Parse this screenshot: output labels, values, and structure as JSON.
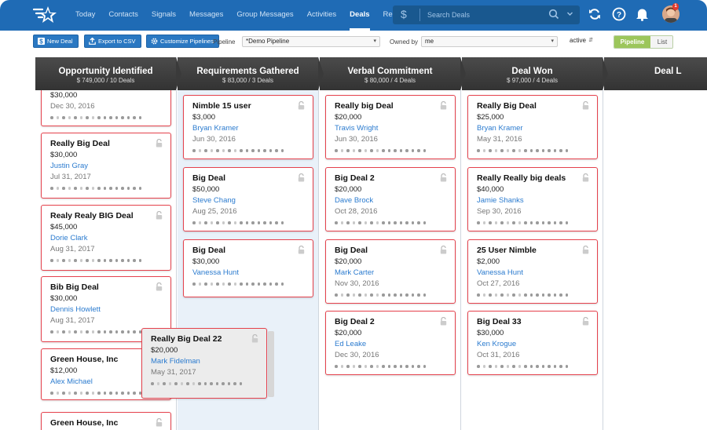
{
  "nav": {
    "items": [
      "Today",
      "Contacts",
      "Signals",
      "Messages",
      "Group Messages",
      "Activities",
      "Deals",
      "Reports"
    ],
    "active": "Deals",
    "search_placeholder": "Search Deals",
    "notification_count": "1"
  },
  "toolbar": {
    "new_deal": "New Deal",
    "export_csv": "Export to CSV",
    "customize": "Customize Pipelines",
    "pipeline_label": "Pipeline",
    "pipeline_value": "*Demo Pipeline",
    "owned_label": "Owned by",
    "owned_value": "me",
    "status_value": "active",
    "view_pipeline": "Pipeline",
    "view_list": "List"
  },
  "columns": [
    {
      "title": "Opportunity Identified",
      "summary": "$ 749,000 / 10 Deals",
      "cards": [
        {
          "name": "",
          "amount": "$30,000",
          "person": "",
          "date": "Dec 30, 2016"
        },
        {
          "name": "Really Big Deal",
          "amount": "$30,000",
          "person": "Justin Gray",
          "date": "Jul 31, 2017"
        },
        {
          "name": "Realy Realy BIG Deal",
          "amount": "$45,000",
          "person": "Dorie Clark",
          "date": "Aug 31, 2017"
        },
        {
          "name": "Bib Big Deal",
          "amount": "$30,000",
          "person": "Dennis Howlett",
          "date": "Aug 31, 2017"
        },
        {
          "name": "Green House, Inc",
          "amount": "$12,000",
          "person": "Alex Michael",
          "date": ""
        },
        {
          "name": "Green House, Inc",
          "amount": "",
          "person": "",
          "date": ""
        }
      ]
    },
    {
      "title": "Requirements Gathered",
      "summary": "$ 83,000 / 3 Deals",
      "cards": [
        {
          "name": "Nimble 15 user",
          "amount": "$3,000",
          "person": "Bryan Kramer",
          "date": "Jun 30, 2016"
        },
        {
          "name": "Big Deal",
          "amount": "$50,000",
          "person": "Steve Chang",
          "date": "Aug 25, 2016"
        },
        {
          "name": "Big Deal",
          "amount": "$30,000",
          "person": "Vanessa Hunt",
          "date": ""
        }
      ]
    },
    {
      "title": "Verbal Commitment",
      "summary": "$ 80,000 / 4 Deals",
      "cards": [
        {
          "name": "Really big Deal",
          "amount": "$20,000",
          "person": "Travis Wright",
          "date": "Jun 30, 2016"
        },
        {
          "name": "Big Deal 2",
          "amount": "$20,000",
          "person": "Dave Brock",
          "date": "Oct 28, 2016"
        },
        {
          "name": "Big Deal",
          "amount": "$20,000",
          "person": "Mark Carter",
          "date": "Nov 30, 2016"
        },
        {
          "name": "Big Deal 2",
          "amount": "$20,000",
          "person": "Ed Leake",
          "date": "Dec 30, 2016"
        }
      ]
    },
    {
      "title": "Deal Won",
      "summary": "$ 97,000 / 4 Deals",
      "cards": [
        {
          "name": "Really Big Deal",
          "amount": "$25,000",
          "person": "Bryan Kramer",
          "date": "May 31, 2016"
        },
        {
          "name": "Really Really big deals",
          "amount": "$40,000",
          "person": "Jamie Shanks",
          "date": "Sep 30, 2016"
        },
        {
          "name": "25 User Nimble",
          "amount": "$2,000",
          "person": "Vanessa Hunt",
          "date": "Oct 27, 2016"
        },
        {
          "name": "Big Deal 33",
          "amount": "$30,000",
          "person": "Ken Krogue",
          "date": "Oct 31, 2016"
        }
      ]
    },
    {
      "title": "Deal L",
      "summary": "",
      "cards": []
    }
  ],
  "dragged_card": {
    "name": "Really Big Deal 22",
    "amount": "$20,000",
    "person": "Mark Fidelman",
    "date": "May 31, 2017"
  },
  "colors": {
    "nav": "#1f6bb5",
    "card_border": "#e5424d",
    "person_link": "#2b7bcf",
    "drop_zone": "#e9f1f9",
    "toggle_active": "#9cc65b"
  }
}
